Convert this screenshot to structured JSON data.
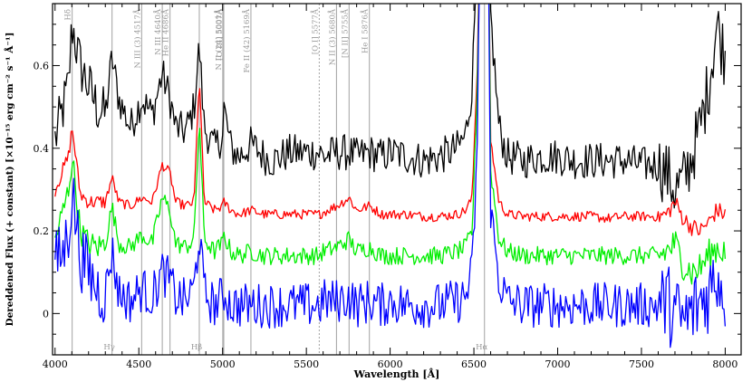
{
  "chart_data": {
    "type": "line",
    "title": "",
    "xlabel": "Wavelength [Å]",
    "ylabel": "Dereddened Flux (+ constant) [×10⁻¹⁵ erg cm⁻² s⁻¹ Å⁻¹]",
    "xlim": [
      3985,
      8095
    ],
    "ylim": [
      -0.1,
      0.75
    ],
    "grid": false,
    "legend": "none",
    "x_ticks": [
      4000,
      4500,
      5000,
      5500,
      6000,
      6500,
      7000,
      7500,
      8000
    ],
    "x_tick_labels": [
      "4000",
      "4500",
      "5000",
      "5500",
      "6000",
      "6500",
      "7000",
      "7500",
      "8000"
    ],
    "y_ticks": [
      0,
      0.2,
      0.4,
      0.6
    ],
    "y_tick_labels": [
      "0",
      "0.2",
      "0.4",
      "0.6"
    ],
    "emission_lines": [
      {
        "label": "Hδ",
        "wavelength": 4102,
        "position": "top",
        "dashed": false
      },
      {
        "label": "Hγ",
        "wavelength": 4340,
        "position": "bottom",
        "dashed": false
      },
      {
        "label": "N III (3) 4517Å",
        "wavelength": 4517,
        "position": "top",
        "dashed": false
      },
      {
        "label": "N III 4640Å",
        "wavelength": 4640,
        "position": "top",
        "dashed": false
      },
      {
        "label": "He II 4686Å",
        "wavelength": 4686,
        "position": "top",
        "dashed": false
      },
      {
        "label": "Hβ",
        "wavelength": 4861,
        "position": "bottom",
        "dashed": false
      },
      {
        "label": "N II (24) 5001Å",
        "wavelength": 5001,
        "position": "top",
        "dashed": false
      },
      {
        "label": "[O III] 5007Å",
        "wavelength": 5007,
        "position": "top",
        "dashed": false
      },
      {
        "label": "Fe II (42) 5169Å",
        "wavelength": 5169,
        "position": "top",
        "dashed": false
      },
      {
        "label": "[O I] 5577Å",
        "wavelength": 5577,
        "position": "top",
        "dashed": true
      },
      {
        "label": "N II (3) 5680Å",
        "wavelength": 5680,
        "position": "top",
        "dashed": false
      },
      {
        "label": "[N II] 5755Å",
        "wavelength": 5755,
        "position": "top",
        "dashed": false
      },
      {
        "label": "He I 5876Å",
        "wavelength": 5876,
        "position": "top",
        "dashed": false
      },
      {
        "label": "Hα",
        "wavelength": 6563,
        "position": "bottom",
        "dashed": false
      }
    ],
    "series": [
      {
        "color": "#000000",
        "offset": 0.38,
        "noise": 0.045
      },
      {
        "color": "#ff0000",
        "offset": 0.235,
        "noise": 0.012
      },
      {
        "color": "#00ee00",
        "offset": 0.15,
        "noise": 0.022
      },
      {
        "color": "#0000ff",
        "offset": 0.03,
        "noise": 0.055
      }
    ],
    "x": [
      4000,
      4050,
      4080,
      4102,
      4150,
      4200,
      4250,
      4300,
      4340,
      4380,
      4450,
      4517,
      4580,
      4640,
      4686,
      4720,
      4780,
      4830,
      4861,
      4890,
      4950,
      5001,
      5007,
      5050,
      5100,
      5169,
      5250,
      5300,
      5400,
      5500,
      5577,
      5600,
      5680,
      5755,
      5800,
      5876,
      5950,
      6000,
      6100,
      6200,
      6300,
      6400,
      6450,
      6490,
      6520,
      6540,
      6563,
      6585,
      6600,
      6650,
      6700,
      6800,
      6900,
      7000,
      7100,
      7200,
      7300,
      7400,
      7500,
      7600,
      7650,
      7700,
      7750,
      7800,
      7850,
      7900,
      7950,
      8000
    ],
    "continuum": {
      "black": [
        0.42,
        0.5,
        0.55,
        0.7,
        0.6,
        0.55,
        0.5,
        0.48,
        0.62,
        0.52,
        0.45,
        0.52,
        0.48,
        0.58,
        0.52,
        0.45,
        0.44,
        0.5,
        0.65,
        0.45,
        0.4,
        0.43,
        0.5,
        0.4,
        0.38,
        0.41,
        0.38,
        0.37,
        0.39,
        0.39,
        0.39,
        0.38,
        0.39,
        0.39,
        0.38,
        0.39,
        0.38,
        0.39,
        0.38,
        0.37,
        0.38,
        0.4,
        0.43,
        0.55,
        0.9,
        1.0,
        1.0,
        1.0,
        0.72,
        0.45,
        0.38,
        0.37,
        0.38,
        0.38,
        0.37,
        0.37,
        0.37,
        0.37,
        0.36,
        0.36,
        0.34,
        0.3,
        0.32,
        0.38,
        0.45,
        0.55,
        0.7,
        0.62
      ],
      "red": [
        0.3,
        0.35,
        0.38,
        0.45,
        0.29,
        0.27,
        0.27,
        0.27,
        0.33,
        0.27,
        0.26,
        0.28,
        0.27,
        0.36,
        0.34,
        0.27,
        0.26,
        0.27,
        0.58,
        0.27,
        0.25,
        0.26,
        0.27,
        0.25,
        0.24,
        0.25,
        0.24,
        0.24,
        0.24,
        0.24,
        0.24,
        0.245,
        0.26,
        0.28,
        0.25,
        0.26,
        0.24,
        0.24,
        0.24,
        0.235,
        0.235,
        0.24,
        0.25,
        0.28,
        0.6,
        1.0,
        1.0,
        1.0,
        0.42,
        0.27,
        0.24,
        0.235,
        0.235,
        0.235,
        0.235,
        0.235,
        0.23,
        0.235,
        0.235,
        0.235,
        0.24,
        0.27,
        0.23,
        0.21,
        0.2,
        0.22,
        0.25,
        0.24
      ],
      "green": [
        0.18,
        0.25,
        0.3,
        0.38,
        0.2,
        0.17,
        0.16,
        0.17,
        0.26,
        0.17,
        0.16,
        0.19,
        0.17,
        0.28,
        0.25,
        0.17,
        0.16,
        0.18,
        0.48,
        0.18,
        0.15,
        0.17,
        0.19,
        0.15,
        0.14,
        0.15,
        0.14,
        0.14,
        0.14,
        0.14,
        0.14,
        0.15,
        0.16,
        0.18,
        0.15,
        0.16,
        0.14,
        0.14,
        0.14,
        0.14,
        0.14,
        0.15,
        0.16,
        0.2,
        0.55,
        1.0,
        1.0,
        1.0,
        0.35,
        0.18,
        0.15,
        0.14,
        0.14,
        0.14,
        0.14,
        0.14,
        0.14,
        0.14,
        0.14,
        0.14,
        0.15,
        0.17,
        0.12,
        0.1,
        0.11,
        0.14,
        0.16,
        0.15
      ],
      "blue": [
        0.12,
        0.15,
        0.2,
        0.3,
        0.14,
        0.1,
        0.06,
        0.05,
        0.15,
        0.05,
        0.03,
        0.06,
        0.04,
        0.1,
        0.08,
        0.04,
        0.03,
        0.06,
        0.2,
        0.05,
        0.02,
        0.04,
        0.05,
        0.02,
        0.02,
        0.02,
        0.02,
        0.02,
        0.02,
        0.02,
        0.02,
        0.03,
        0.03,
        0.04,
        0.02,
        0.03,
        0.02,
        0.03,
        0.02,
        0.02,
        0.02,
        0.03,
        0.04,
        0.1,
        0.4,
        1.0,
        1.0,
        1.0,
        0.25,
        0.08,
        0.03,
        0.02,
        0.02,
        0.02,
        0.02,
        0.02,
        0.02,
        0.02,
        0.02,
        0.02,
        0.03,
        0.0,
        -0.02,
        0.0,
        0.03,
        0.05,
        0.1,
        0.05
      ]
    }
  }
}
